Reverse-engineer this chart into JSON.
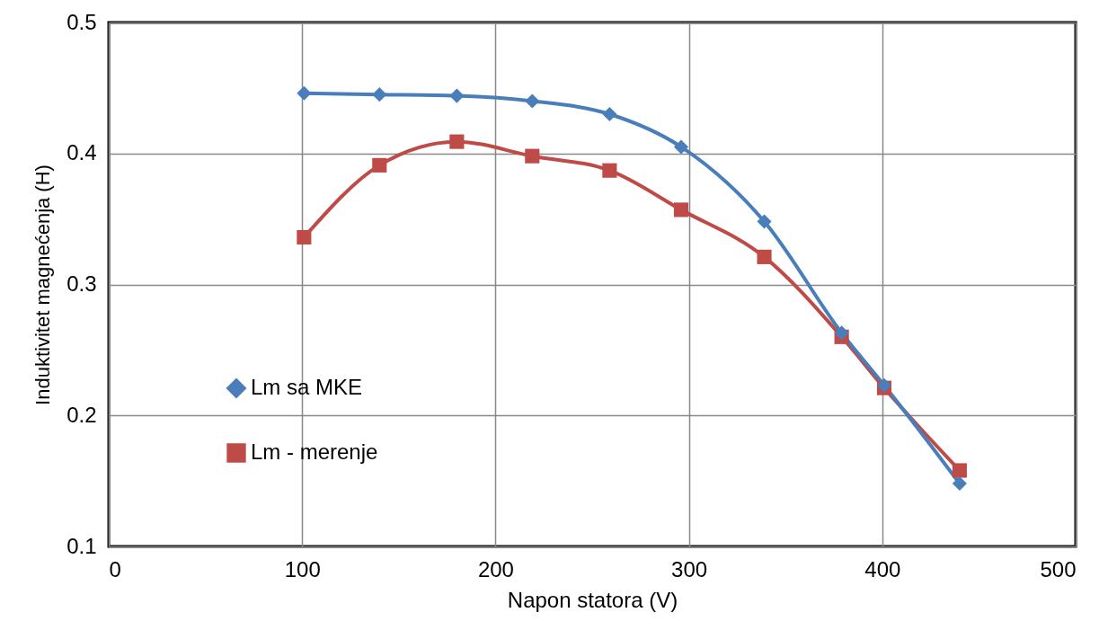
{
  "chart_data": {
    "type": "line",
    "xlabel": "Napon statora (V)",
    "ylabel": "Induktivitet  magnećenja  (H)",
    "xlim": [
      0,
      500
    ],
    "xticks": [
      0,
      100,
      200,
      300,
      400,
      500
    ],
    "ylim": [
      0.1,
      0.5
    ],
    "yticks": [
      0.1,
      0.2,
      0.3,
      0.4,
      0.5
    ],
    "grid": true,
    "legend": "left",
    "series": [
      {
        "name": "Lm sa MKE",
        "color": "#4a7ebb",
        "marker": "diamond",
        "x": [
          101,
          140,
          180,
          219,
          259,
          296,
          339,
          379,
          401,
          440
        ],
        "values": [
          0.446,
          0.445,
          0.444,
          0.44,
          0.43,
          0.405,
          0.348,
          0.263,
          0.223,
          0.148
        ]
      },
      {
        "name": "Lm - merenje",
        "color": "#be4b48",
        "marker": "square",
        "x": [
          101,
          140,
          180,
          219,
          259,
          296,
          339,
          379,
          401,
          440
        ],
        "values": [
          0.336,
          0.391,
          0.409,
          0.398,
          0.387,
          0.357,
          0.321,
          0.26,
          0.221,
          0.158
        ]
      }
    ]
  }
}
